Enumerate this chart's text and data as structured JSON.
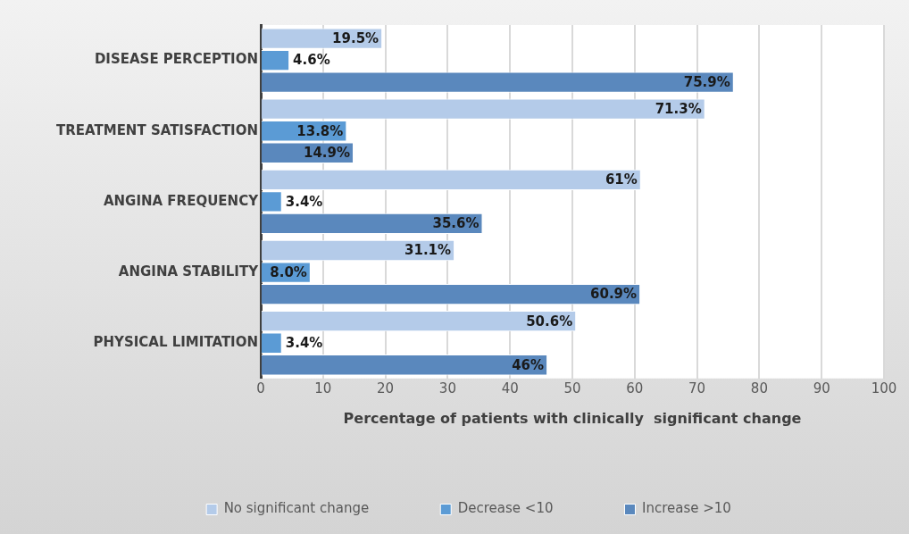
{
  "chart_data": {
    "type": "bar",
    "orientation": "horizontal",
    "xlabel": "Percentage of patients with clinically  significant change",
    "categories": [
      "DISEASE PERCEPTION",
      "TREATMENT SATISFACTION",
      "ANGINA FREQUENCY",
      "ANGINA STABILITY",
      "PHYSICAL LIMITATION"
    ],
    "series": [
      {
        "name": "No significant change",
        "color": "#b4cbe9",
        "values": [
          19.5,
          71.3,
          61,
          31.1,
          50.6
        ],
        "value_labels": [
          "19.5%",
          "71.3%",
          "61%",
          "31.1%",
          "50.6%"
        ]
      },
      {
        "name": "Decrease <10",
        "color": "#5b9bd5",
        "values": [
          4.6,
          13.8,
          3.4,
          8.0,
          3.4
        ],
        "value_labels": [
          "4.6%",
          "13.8%",
          "3.4%",
          "8.0%",
          "3.4%"
        ]
      },
      {
        "name": "Increase >10",
        "color": "#5a88bd",
        "values": [
          75.9,
          14.9,
          35.6,
          60.9,
          46
        ],
        "value_labels": [
          "75.9%",
          "14.9%",
          "35.6%",
          "60.9%",
          "46%"
        ]
      }
    ],
    "xlim": [
      0,
      100
    ],
    "xticks": [
      0,
      10,
      20,
      30,
      40,
      50,
      60,
      70,
      80,
      90,
      100
    ],
    "grid": "x",
    "legend": "bottom"
  }
}
